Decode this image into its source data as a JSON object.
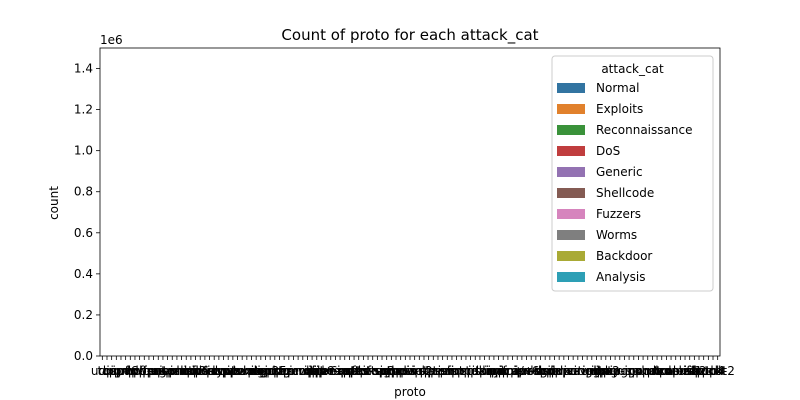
{
  "chart_data": {
    "type": "bar",
    "title": "Count of proto for each attack_cat",
    "xlabel": "proto",
    "ylabel": "count",
    "y_offset_label": "1e6",
    "ylim": [
      0,
      1.5
    ],
    "y_ticks": [
      "0.0",
      "0.2",
      "0.4",
      "0.6",
      "0.8",
      "1.0",
      "1.2",
      "1.4"
    ],
    "x_tick_count": 133,
    "x_tick_labels_legible": [
      "udp",
      "tcp",
      "arp",
      "ospf",
      "icmp",
      "igmp",
      "rtp",
      "ddp",
      "ipv6-frag",
      "cftp",
      "wsn",
      "pvp",
      "wb-expak",
      "mtp",
      "pri-enc",
      "sat-mon",
      "cphb",
      "sun-nd",
      "iso-ip",
      "xtp",
      "il",
      "unas",
      "mfe-nsp",
      "3pc",
      "ipv6-route",
      "idrp",
      "bna",
      "swipe",
      "kryptolan",
      "cpnx",
      "rsvp",
      "wb-mon",
      "vmtp",
      "ib",
      "dgp",
      "eigrp",
      "ax.25",
      "gmtp",
      "pnni",
      "sep",
      "pgm",
      "idpr-cmtp",
      "zero",
      "rvd",
      "mobile",
      "narp",
      "fc",
      "pipe",
      "ipcomp",
      "ipv6-no",
      "sat-expak",
      "ipv6-opts",
      "snp",
      "ipcv",
      "br-sat-mon",
      "ttp",
      "tcf",
      "nsfnet-igp",
      "sprite-rpc",
      "aes-sp3-d",
      "sccopmce",
      "sctp",
      "qnx",
      "scps",
      "etherip",
      "aris",
      "pim",
      "compaq-peer",
      "vrrp",
      "iatp",
      "stp",
      "l2tp",
      "srp",
      "sm",
      "isis",
      "smp",
      "fire",
      "ptp",
      "crtp",
      "sps",
      "merit-inp",
      "idpr",
      "skip",
      "any",
      "larp",
      "ipip",
      "micp",
      "encap",
      "ifmp",
      "tp++",
      "a/n",
      "ipv6",
      "i-nlsp",
      "ipx-n-ip",
      "sdrp",
      "tlsp",
      "gre",
      "mhrp",
      "ddx",
      "ippc",
      "visa",
      "secure-vmtp",
      "uti",
      "vines",
      "crudp",
      "iplt",
      "ggp",
      "ip",
      "ipnip",
      "st2",
      "argus",
      "bbn-rcc",
      "egp",
      "emcon",
      "igp",
      "nvp",
      "pup",
      "xnet",
      "chaos",
      "mux",
      "dcn",
      "hmp",
      "prm",
      "trunk-1",
      "xns-idp",
      "leaf-1",
      "leaf-2",
      "rdp",
      "irtp",
      "iso-tp4",
      "netblt",
      "trunk-2",
      "cbt",
      "3pc",
      "wb-expak",
      "unas",
      "pvp"
    ],
    "legend": {
      "title": "attack_cat",
      "placement": "top-right",
      "entries": [
        {
          "name": "Normal",
          "color": "#3274a1"
        },
        {
          "name": "Exploits",
          "color": "#e1812c"
        },
        {
          "name": "Reconnaissance",
          "color": "#3a923a"
        },
        {
          "name": "DoS",
          "color": "#c03d3e"
        },
        {
          "name": "Generic",
          "color": "#9372b2"
        },
        {
          "name": "Shellcode",
          "color": "#845b53"
        },
        {
          "name": "Fuzzers",
          "color": "#d684bd"
        },
        {
          "name": "Worms",
          "color": "#7f7f7f"
        },
        {
          "name": "Backdoor",
          "color": "#a9aa35"
        },
        {
          "name": "Analysis",
          "color": "#2d9fb5"
        }
      ]
    },
    "series": [],
    "grid": false
  }
}
